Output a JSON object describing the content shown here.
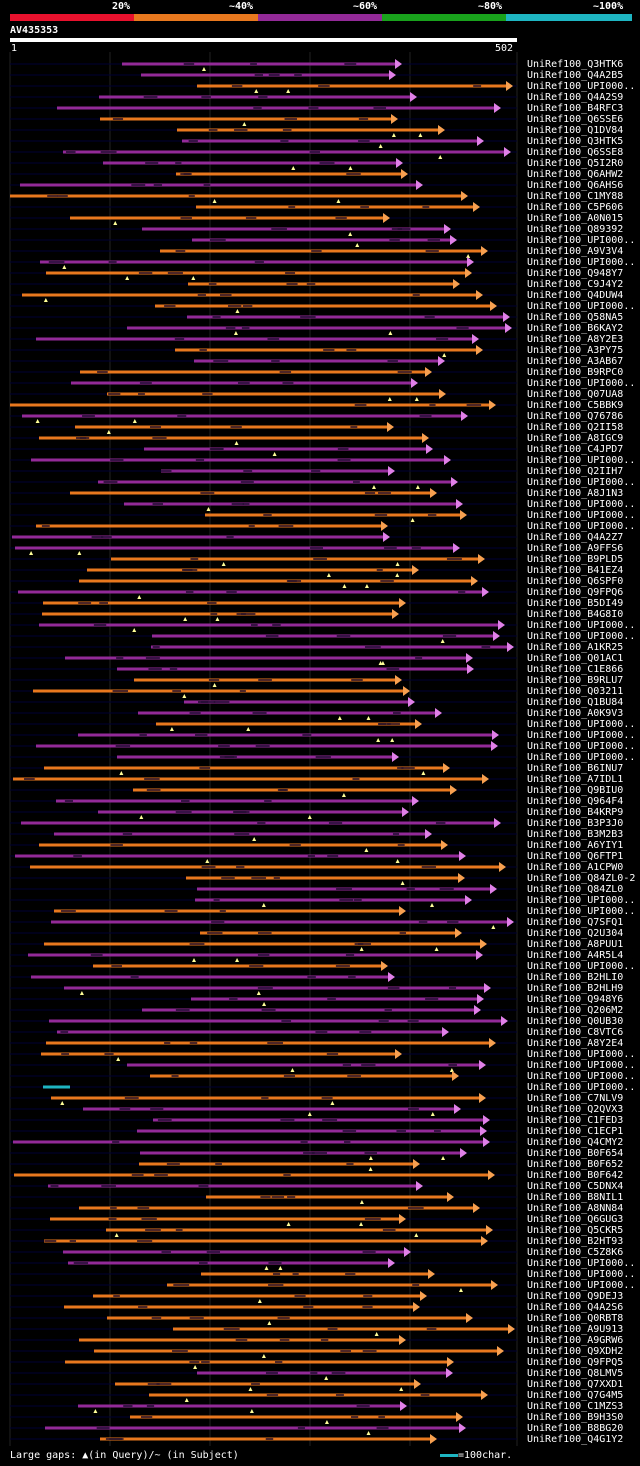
{
  "legend": {
    "ticks": [
      "20%",
      "~40%",
      "~60%",
      "~80%",
      "~100%"
    ],
    "colors": [
      "#e8112d",
      "#e8781e",
      "#932a98",
      "#19a21c",
      "#1eb5c2"
    ]
  },
  "query": {
    "name": "AV435353",
    "start": "1",
    "end": "502"
  },
  "footer": {
    "gaps": "Large gaps: ▲(in Query)/~ (in Subject)",
    "scale": "=100char."
  },
  "hits": [
    "UniRef100_Q3HTK6",
    "UniRef100_Q4A2B5",
    "UniRef100_UPI000..",
    "UniRef100_Q4A2S9",
    "UniRef100_B4RFC3",
    "UniRef100_Q6SSE6",
    "UniRef100_Q1DV84",
    "UniRef100_Q3HTK5",
    "UniRef100_Q6SSE8",
    "UniRef100_Q5I2R0",
    "UniRef100_Q6AHW2",
    "UniRef100_Q6AHS6",
    "UniRef100_C1MY88",
    "UniRef100_C5P606",
    "UniRef100_A0N015",
    "UniRef100_Q89392",
    "UniRef100_UPI000..",
    "UniRef100_A9V3V4",
    "UniRef100_UPI000..",
    "UniRef100_Q948Y7",
    "UniRef100_C9J4Y2",
    "UniRef100_Q4DUW4",
    "UniRef100_UPI000..",
    "UniRef100_Q58NA5",
    "UniRef100_B6KAY2",
    "UniRef100_A8Y2E3",
    "UniRef100_A3PY75",
    "UniRef100_A3AB67",
    "UniRef100_B9RPC0",
    "UniRef100_UPI000..",
    "UniRef100_Q07UA8",
    "UniRef100_C5BBK9",
    "UniRef100_Q76786",
    "UniRef100_Q2II58",
    "UniRef100_A8IGC9",
    "UniRef100_C4JPD7",
    "UniRef100_UPI000..",
    "UniRef100_Q2IIH7",
    "UniRef100_UPI000..",
    "UniRef100_A8J1N3",
    "UniRef100_UPI000..",
    "UniRef100_UPI000..",
    "UniRef100_UPI000..",
    "UniRef100_Q4A2Z7",
    "UniRef100_A9FFS6",
    "UniRef100_B9PLD5",
    "UniRef100_B41EZ4",
    "UniRef100_Q6SPF0",
    "UniRef100_Q9FPQ6",
    "UniRef100_B5DI49",
    "UniRef100_B4G8I0",
    "UniRef100_UPI000..",
    "UniRef100_UPI000..",
    "UniRef100_A1KR25",
    "UniRef100_Q01AC1",
    "UniRef100_C1E866",
    "UniRef100_B9RLU7",
    "UniRef100_Q03211",
    "UniRef100_Q1BU84",
    "UniRef100_A0K9V3",
    "UniRef100_UPI000..",
    "UniRef100_UPI000..",
    "UniRef100_UPI000..",
    "UniRef100_UPI000..",
    "UniRef100_B6INU7",
    "UniRef100_A7IDL1",
    "UniRef100_Q9BIU0",
    "UniRef100_Q964F4",
    "UniRef100_B4KRP9",
    "UniRef100_B3P3J0",
    "UniRef100_B3M2B3",
    "UniRef100_A6YIY1",
    "UniRef100_Q6FTP1",
    "UniRef100_A1CPW0",
    "UniRef100_Q84ZL0-2",
    "UniRef100_Q84ZL0",
    "UniRef100_UPI000..",
    "UniRef100_UPI000..",
    "UniRef100_Q7SFQ1",
    "UniRef100_Q2U304",
    "UniRef100_A8PUU1",
    "UniRef100_A4R5L4",
    "UniRef100_UPI000..",
    "UniRef100_B2HLI0",
    "UniRef100_B2HLH9",
    "UniRef100_Q948Y6",
    "UniRef100_Q206M2",
    "UniRef100_Q0UB30",
    "UniRef100_C8VTC6",
    "UniRef100_A8Y2E4",
    "UniRef100_UPI000..",
    "UniRef100_UPI000..",
    "UniRef100_UPI000..",
    "UniRef100_UPI000..",
    "UniRef100_C7NLV9",
    "UniRef100_Q2QVX3",
    "UniRef100_C1FED3",
    "UniRef100_C1ECP1",
    "UniRef100_Q4CMY2",
    "UniRef100_B0F654",
    "UniRef100_B0F652",
    "UniRef100_B0F642",
    "UniRef100_C5DNX4",
    "UniRef100_B8NIL1",
    "UniRef100_A8NN84",
    "UniRef100_Q6GUG3",
    "UniRef100_Q5CKR5",
    "UniRef100_B2HT93",
    "UniRef100_C5Z8K6",
    "UniRef100_UPI000..",
    "UniRef100_UPI000..",
    "UniRef100_UPI000..",
    "UniRef100_Q9DEJ3",
    "UniRef100_Q4A2S6",
    "UniRef100_Q0RBT8",
    "UniRef100_A9U913",
    "UniRef100_A9GRW6",
    "UniRef100_Q9XDH2",
    "UniRef100_Q9FPQ5",
    "UniRef100_Q8LMV5",
    "UniRef100_Q7XXD1",
    "UniRef100_Q7G4M5",
    "UniRef100_C1MZS3",
    "UniRef100_B9H3S0",
    "UniRef100_B8BG20",
    "UniRef100_Q4G1Y2"
  ]
}
